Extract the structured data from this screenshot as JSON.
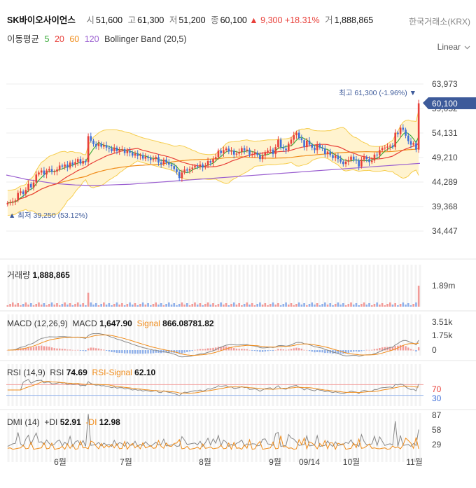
{
  "header": {
    "name": "SK바이오사이언스",
    "open_label": "시",
    "open": "51,600",
    "high_label": "고",
    "high": "61,300",
    "low_label": "저",
    "low": "51,200",
    "close_label": "종",
    "close": "60,100",
    "change": "▲ 9,300",
    "change_pct": "+18.31%",
    "volume_label": "거",
    "volume": "1,888,865",
    "exchange": "한국거래소(KRX)"
  },
  "indicators": {
    "ma_label": "이동평균",
    "ma5": "5",
    "ma20": "20",
    "ma60": "60",
    "ma120": "120",
    "bollinger": "Bollinger Band (20,5)"
  },
  "scale_mode": "Linear",
  "colors": {
    "up": "#e8403a",
    "down": "#3f6fd8",
    "ma5": "#35a835",
    "ma20": "#e8403a",
    "ma60": "#f08c1a",
    "ma120": "#9a5fd0",
    "band_fill": "#fff3cf",
    "band_line": "#f6cd4e",
    "current_tag": "#3d5a9a"
  },
  "chart_data": {
    "type": "candlestick",
    "y_ticks": [
      "63,973",
      "59,052",
      "54,131",
      "49,210",
      "44,289",
      "39,368",
      "34,447"
    ],
    "ylim": [
      33000,
      66000
    ],
    "x_labels": [
      "6월",
      "7월",
      "8월",
      "9월",
      "09/14",
      "10월",
      "11월"
    ],
    "max_annotation": "최고 61,300 (-1.96%) ▼",
    "min_annotation": "▲ 최저 39,250 (53.12%)",
    "current_price_tag": "60,100",
    "series_close": [
      40100,
      40200,
      40400,
      40600,
      42100,
      42400,
      41900,
      42700,
      43900,
      43200,
      44200,
      45800,
      46200,
      46600,
      45800,
      46600,
      46900,
      46300,
      46400,
      46800,
      47600,
      47400,
      47800,
      47200,
      48200,
      47800,
      48300,
      48900,
      48000,
      48500,
      48300,
      53500,
      52600,
      51900,
      51500,
      52000,
      51400,
      51700,
      51200,
      51000,
      50500,
      51200,
      50500,
      50800,
      50900,
      50100,
      50600,
      50200,
      49600,
      50000,
      49500,
      49700,
      49000,
      49400,
      49100,
      48700,
      48900,
      49300,
      48200,
      47900,
      48800,
      48200,
      47800,
      47500,
      46900,
      46300,
      45100,
      46200,
      46800,
      46600,
      46900,
      47200,
      47500,
      47400,
      47800,
      47200,
      47600,
      48500,
      48200,
      48900,
      49300,
      50600,
      50100,
      50700,
      51000,
      50400,
      50600,
      49800,
      50000,
      50300,
      51100,
      50600,
      50800,
      49800,
      49900,
      50200,
      49700,
      48900,
      49600,
      50300,
      50600,
      50800,
      49900,
      51300,
      52800,
      51300,
      51000,
      50700,
      52000,
      52800,
      53700,
      54200,
      53100,
      52700,
      51300,
      52600,
      51800,
      51200,
      50700,
      51800,
      51200,
      51000,
      49900,
      50400,
      49700,
      49100,
      49600,
      48900,
      48400,
      47900,
      48400,
      48700,
      49400,
      48800,
      48600,
      47400,
      48800,
      49300,
      48900,
      48300,
      48600,
      49800,
      49700,
      50700,
      51100,
      51200,
      51400,
      51600,
      51300,
      54200,
      53900,
      55200,
      54800,
      53600,
      52500,
      51800,
      52100,
      50800,
      60100
    ],
    "ma120": [
      45700,
      45400,
      45100,
      44800,
      44600,
      44400,
      44200,
      44000,
      43900,
      43800,
      43700,
      43650,
      43600,
      43600,
      43650,
      43700,
      43750,
      43800,
      43850,
      43950,
      44050,
      44150,
      44250,
      44350,
      44450,
      44550,
      44650,
      44750,
      44850,
      44950,
      45050,
      45150,
      45250,
      45350,
      45450,
      45550,
      45650,
      45750,
      45850,
      45950,
      46050,
      46150,
      46250,
      46350,
      46450,
      46550,
      46650,
      46750,
      46850,
      46950,
      47050,
      47150,
      47250,
      47350,
      47450,
      47550,
      47650,
      47750,
      47850,
      47950,
      48050
    ],
    "volume": {
      "max_label": "1.89m",
      "last": "1,888,865"
    },
    "macd": {
      "params": "(12,26,9)",
      "macd": "1,647.90",
      "signal": "866.08781.82",
      "ticks": [
        "3.51k",
        "1.75k",
        "0"
      ]
    },
    "rsi": {
      "params": "(14,9)",
      "rsi": "74.69",
      "signal": "62.10",
      "ticks": [
        "70",
        "30"
      ]
    },
    "dmi": {
      "params": "(14)",
      "plus_di": "52.91",
      "minus_di": "12.98",
      "ticks": [
        "87",
        "58",
        "29"
      ]
    }
  },
  "panes": {
    "volume_label": "거래량",
    "macd_label": "MACD",
    "macd_name": "MACD",
    "macd_signal_label": "Signal",
    "rsi_label": "RSI",
    "rsi_name": "RSI",
    "rsi_signal_label": "RSI-Signal",
    "dmi_label": "DMI",
    "plus_di_label": "+DI",
    "minus_di_label": "-DI"
  }
}
